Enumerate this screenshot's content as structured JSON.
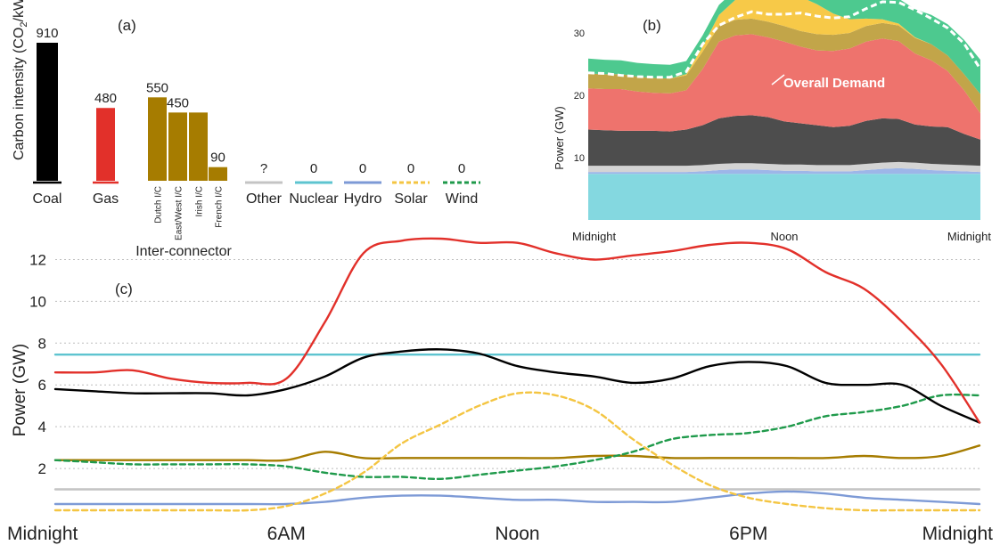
{
  "panel_labels": {
    "a": "(a)",
    "b": "(b)",
    "c": "(c)"
  },
  "colors": {
    "coal": "#000000",
    "gas": "#e2302a",
    "interconnector": "#a67c00",
    "other": "#c4c4c4",
    "nuclear": "#5ec4d0",
    "hydro": "#7d9ad6",
    "solar": "#f4c542",
    "wind": "#1f9a4b",
    "overall_demand": "#ffffff",
    "demand_area_wind": "#4dc98f",
    "demand_area_solar": "#f7c948",
    "demand_area_ic": "#c2a549",
    "demand_area_gas": "#ee736d",
    "demand_area_coal": "#4d4d4d",
    "demand_area_other": "#d4d4d4",
    "demand_area_hydro": "#9db6e8",
    "demand_area_nuclear": "#84d8e0"
  },
  "chart_data": [
    {
      "panel": "(a)",
      "type": "bar",
      "ylabel": "Carbon intensity (CO2/kWh)",
      "ylabel_parts": {
        "main": "Carbon intensity (CO",
        "sub": "2",
        "tail": "/kWh)"
      },
      "group_label": "Inter-connector",
      "bars": [
        {
          "label": "Coal",
          "value": 910,
          "value_label": "910",
          "color": "#000000"
        },
        {
          "label": "Gas",
          "value": 480,
          "value_label": "480",
          "color": "#e2302a"
        },
        {
          "label": "Dutch I/C",
          "value": 550,
          "value_label": "550",
          "color": "#a67c00"
        },
        {
          "label": "East/West I/C",
          "value": 450,
          "value_label": "450",
          "color": "#a67c00"
        },
        {
          "label": "Irish I/C",
          "value": 450,
          "value_label": "",
          "color": "#a67c00"
        },
        {
          "label": "French I/C",
          "value": 90,
          "value_label": "90",
          "color": "#a67c00"
        }
      ],
      "legend": [
        {
          "label": "Other",
          "value_label": "?",
          "color": "#c4c4c4",
          "style": "solid"
        },
        {
          "label": "Nuclear",
          "value_label": "0",
          "color": "#5ec4d0",
          "style": "solid"
        },
        {
          "label": "Hydro",
          "value_label": "0",
          "color": "#7d9ad6",
          "style": "solid"
        },
        {
          "label": "Solar",
          "value_label": "0",
          "color": "#f4c542",
          "style": "dashed"
        },
        {
          "label": "Wind",
          "value_label": "0",
          "color": "#1f9a4b",
          "style": "dashed"
        }
      ]
    },
    {
      "panel": "(b)",
      "type": "area",
      "ylabel": "Power (GW)",
      "yticks": [
        10,
        20,
        30
      ],
      "ylim": [
        0,
        35
      ],
      "xticks": [
        "Midnight",
        "Noon",
        "Midnight"
      ],
      "annotation": "Overall Demand",
      "x": [
        0,
        1,
        2,
        3,
        4,
        5,
        6,
        7,
        8,
        9,
        10,
        11,
        12,
        13,
        14,
        15,
        16,
        17,
        18,
        19,
        20,
        21,
        22,
        23,
        24
      ],
      "series": [
        {
          "key": "nuclear",
          "values": [
            7.4,
            7.4,
            7.4,
            7.4,
            7.4,
            7.4,
            7.4,
            7.4,
            7.4,
            7.4,
            7.4,
            7.4,
            7.4,
            7.4,
            7.4,
            7.4,
            7.4,
            7.4,
            7.4,
            7.4,
            7.4,
            7.4,
            7.4,
            7.4,
            7.4
          ]
        },
        {
          "key": "hydro",
          "values": [
            0.3,
            0.3,
            0.3,
            0.3,
            0.3,
            0.3,
            0.3,
            0.4,
            0.6,
            0.7,
            0.7,
            0.6,
            0.5,
            0.5,
            0.4,
            0.4,
            0.4,
            0.6,
            0.8,
            0.9,
            0.8,
            0.6,
            0.5,
            0.4,
            0.3
          ]
        },
        {
          "key": "other",
          "values": [
            1.0,
            1.0,
            1.0,
            1.0,
            1.0,
            1.0,
            1.0,
            1.0,
            1.0,
            1.0,
            1.0,
            1.0,
            1.0,
            1.0,
            1.0,
            1.0,
            1.0,
            1.0,
            1.0,
            1.0,
            1.0,
            1.0,
            1.0,
            1.0,
            1.0
          ]
        },
        {
          "key": "coal",
          "values": [
            5.8,
            5.7,
            5.6,
            5.6,
            5.6,
            5.5,
            5.8,
            6.4,
            7.3,
            7.6,
            7.7,
            7.5,
            6.9,
            6.6,
            6.4,
            6.1,
            6.3,
            6.9,
            7.1,
            6.9,
            6.1,
            6.0,
            6.0,
            5.0,
            4.2
          ]
        },
        {
          "key": "gas",
          "values": [
            6.6,
            6.6,
            6.7,
            6.3,
            6.1,
            6.1,
            6.3,
            9.0,
            12.3,
            12.9,
            13.0,
            12.8,
            12.8,
            12.3,
            12.0,
            12.2,
            12.4,
            12.7,
            12.8,
            12.5,
            11.4,
            10.6,
            9.0,
            7.0,
            4.2
          ]
        },
        {
          "key": "interconnector",
          "values": [
            2.4,
            2.4,
            2.4,
            2.4,
            2.4,
            2.4,
            2.4,
            2.8,
            2.5,
            2.5,
            2.5,
            2.5,
            2.5,
            2.5,
            2.6,
            2.6,
            2.5,
            2.5,
            2.5,
            2.5,
            2.5,
            2.6,
            2.5,
            2.6,
            3.1
          ]
        },
        {
          "key": "solar",
          "values": [
            0,
            0,
            0,
            0,
            0,
            0,
            0.2,
            0.8,
            1.8,
            3.2,
            4.1,
            5.0,
            5.6,
            5.5,
            4.8,
            3.4,
            2.2,
            1.2,
            0.6,
            0.3,
            0.1,
            0,
            0,
            0,
            0
          ]
        },
        {
          "key": "wind",
          "values": [
            2.4,
            2.3,
            2.2,
            2.2,
            2.2,
            2.2,
            2.1,
            1.8,
            1.6,
            1.6,
            1.5,
            1.7,
            1.9,
            2.1,
            2.4,
            2.8,
            3.4,
            3.6,
            3.7,
            4.0,
            4.5,
            4.7,
            5.0,
            5.5,
            5.5
          ]
        }
      ],
      "overall_demand": [
        23.6,
        23.5,
        23.2,
        23.0,
        22.9,
        22.9,
        23.8,
        28.2,
        31.2,
        32.5,
        33.4,
        33.0,
        33.0,
        33.2,
        32.7,
        32.4,
        32.6,
        33.9,
        35.0,
        34.9,
        33.7,
        32.3,
        30.8,
        28.3,
        24.2
      ]
    },
    {
      "panel": "(c)",
      "type": "line",
      "ylabel": "Power (GW)",
      "yticks": [
        2,
        4,
        6,
        8,
        10,
        12
      ],
      "ylim": [
        0,
        13
      ],
      "xticks": [
        "Midnight",
        "6AM",
        "Noon",
        "6PM",
        "Midnight"
      ],
      "x": [
        0,
        1,
        2,
        3,
        4,
        5,
        6,
        7,
        8,
        9,
        10,
        11,
        12,
        13,
        14,
        15,
        16,
        17,
        18,
        19,
        20,
        21,
        22,
        23,
        24
      ],
      "series": [
        {
          "key": "gas",
          "color": "#e2302a",
          "style": "solid",
          "values": [
            6.6,
            6.6,
            6.7,
            6.3,
            6.1,
            6.1,
            6.3,
            9.0,
            12.3,
            12.9,
            13.0,
            12.8,
            12.8,
            12.3,
            12.0,
            12.2,
            12.4,
            12.7,
            12.8,
            12.5,
            11.4,
            10.6,
            9.0,
            7.0,
            4.2
          ]
        },
        {
          "key": "nuclear",
          "color": "#5ec4d0",
          "style": "solid",
          "values": [
            7.45,
            7.45,
            7.45,
            7.45,
            7.45,
            7.45,
            7.45,
            7.45,
            7.45,
            7.45,
            7.45,
            7.45,
            7.45,
            7.45,
            7.45,
            7.45,
            7.45,
            7.45,
            7.45,
            7.45,
            7.45,
            7.45,
            7.45,
            7.45,
            7.45
          ]
        },
        {
          "key": "coal",
          "color": "#000000",
          "style": "solid",
          "values": [
            5.8,
            5.7,
            5.6,
            5.6,
            5.6,
            5.5,
            5.8,
            6.4,
            7.3,
            7.6,
            7.7,
            7.5,
            6.9,
            6.6,
            6.4,
            6.1,
            6.3,
            6.9,
            7.1,
            6.9,
            6.1,
            6.0,
            6.0,
            5.0,
            4.2
          ]
        },
        {
          "key": "solar",
          "color": "#f4c542",
          "style": "dashed",
          "values": [
            0,
            0,
            0,
            0,
            0,
            0,
            0.2,
            0.8,
            1.8,
            3.2,
            4.1,
            5.0,
            5.6,
            5.5,
            4.8,
            3.4,
            2.2,
            1.2,
            0.6,
            0.3,
            0.1,
            0,
            0,
            0,
            0
          ]
        },
        {
          "key": "wind",
          "color": "#1f9a4b",
          "style": "dashed",
          "values": [
            2.4,
            2.3,
            2.2,
            2.2,
            2.2,
            2.2,
            2.1,
            1.8,
            1.6,
            1.6,
            1.5,
            1.7,
            1.9,
            2.1,
            2.4,
            2.8,
            3.4,
            3.6,
            3.7,
            4.0,
            4.5,
            4.7,
            5.0,
            5.5,
            5.5
          ]
        },
        {
          "key": "interconnector",
          "color": "#a67c00",
          "style": "solid",
          "values": [
            2.4,
            2.4,
            2.4,
            2.4,
            2.4,
            2.4,
            2.4,
            2.8,
            2.5,
            2.5,
            2.5,
            2.5,
            2.5,
            2.5,
            2.6,
            2.6,
            2.5,
            2.5,
            2.5,
            2.5,
            2.5,
            2.6,
            2.5,
            2.6,
            3.1
          ]
        },
        {
          "key": "other",
          "color": "#c4c4c4",
          "style": "solid",
          "values": [
            1.0,
            1.0,
            1.0,
            1.0,
            1.0,
            1.0,
            1.0,
            1.0,
            1.0,
            1.0,
            1.0,
            1.0,
            1.0,
            1.0,
            1.0,
            1.0,
            1.0,
            1.0,
            1.0,
            1.0,
            1.0,
            1.0,
            1.0,
            1.0,
            1.0
          ]
        },
        {
          "key": "hydro",
          "color": "#7d9ad6",
          "style": "solid",
          "values": [
            0.3,
            0.3,
            0.3,
            0.3,
            0.3,
            0.3,
            0.3,
            0.4,
            0.6,
            0.7,
            0.7,
            0.6,
            0.5,
            0.5,
            0.4,
            0.4,
            0.4,
            0.6,
            0.8,
            0.9,
            0.8,
            0.6,
            0.5,
            0.4,
            0.3
          ]
        }
      ]
    }
  ]
}
